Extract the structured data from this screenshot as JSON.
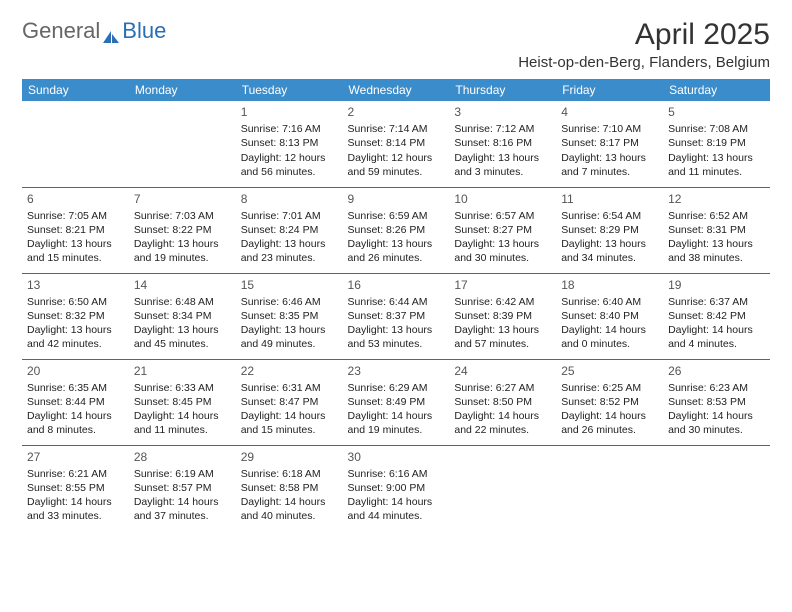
{
  "logo": {
    "text1": "General",
    "text2": "Blue"
  },
  "title": "April 2025",
  "location": "Heist-op-den-Berg, Flanders, Belgium",
  "colors": {
    "header_bg": "#3b8ccb",
    "header_text": "#ffffff",
    "border": "#2a6fb5",
    "logo_gray": "#666666",
    "logo_blue": "#2a6fb5"
  },
  "day_headers": [
    "Sunday",
    "Monday",
    "Tuesday",
    "Wednesday",
    "Thursday",
    "Friday",
    "Saturday"
  ],
  "weeks": [
    [
      null,
      null,
      {
        "n": "1",
        "sr": "7:16 AM",
        "ss": "8:13 PM",
        "dl": "12 hours and 56 minutes."
      },
      {
        "n": "2",
        "sr": "7:14 AM",
        "ss": "8:14 PM",
        "dl": "12 hours and 59 minutes."
      },
      {
        "n": "3",
        "sr": "7:12 AM",
        "ss": "8:16 PM",
        "dl": "13 hours and 3 minutes."
      },
      {
        "n": "4",
        "sr": "7:10 AM",
        "ss": "8:17 PM",
        "dl": "13 hours and 7 minutes."
      },
      {
        "n": "5",
        "sr": "7:08 AM",
        "ss": "8:19 PM",
        "dl": "13 hours and 11 minutes."
      }
    ],
    [
      {
        "n": "6",
        "sr": "7:05 AM",
        "ss": "8:21 PM",
        "dl": "13 hours and 15 minutes."
      },
      {
        "n": "7",
        "sr": "7:03 AM",
        "ss": "8:22 PM",
        "dl": "13 hours and 19 minutes."
      },
      {
        "n": "8",
        "sr": "7:01 AM",
        "ss": "8:24 PM",
        "dl": "13 hours and 23 minutes."
      },
      {
        "n": "9",
        "sr": "6:59 AM",
        "ss": "8:26 PM",
        "dl": "13 hours and 26 minutes."
      },
      {
        "n": "10",
        "sr": "6:57 AM",
        "ss": "8:27 PM",
        "dl": "13 hours and 30 minutes."
      },
      {
        "n": "11",
        "sr": "6:54 AM",
        "ss": "8:29 PM",
        "dl": "13 hours and 34 minutes."
      },
      {
        "n": "12",
        "sr": "6:52 AM",
        "ss": "8:31 PM",
        "dl": "13 hours and 38 minutes."
      }
    ],
    [
      {
        "n": "13",
        "sr": "6:50 AM",
        "ss": "8:32 PM",
        "dl": "13 hours and 42 minutes."
      },
      {
        "n": "14",
        "sr": "6:48 AM",
        "ss": "8:34 PM",
        "dl": "13 hours and 45 minutes."
      },
      {
        "n": "15",
        "sr": "6:46 AM",
        "ss": "8:35 PM",
        "dl": "13 hours and 49 minutes."
      },
      {
        "n": "16",
        "sr": "6:44 AM",
        "ss": "8:37 PM",
        "dl": "13 hours and 53 minutes."
      },
      {
        "n": "17",
        "sr": "6:42 AM",
        "ss": "8:39 PM",
        "dl": "13 hours and 57 minutes."
      },
      {
        "n": "18",
        "sr": "6:40 AM",
        "ss": "8:40 PM",
        "dl": "14 hours and 0 minutes."
      },
      {
        "n": "19",
        "sr": "6:37 AM",
        "ss": "8:42 PM",
        "dl": "14 hours and 4 minutes."
      }
    ],
    [
      {
        "n": "20",
        "sr": "6:35 AM",
        "ss": "8:44 PM",
        "dl": "14 hours and 8 minutes."
      },
      {
        "n": "21",
        "sr": "6:33 AM",
        "ss": "8:45 PM",
        "dl": "14 hours and 11 minutes."
      },
      {
        "n": "22",
        "sr": "6:31 AM",
        "ss": "8:47 PM",
        "dl": "14 hours and 15 minutes."
      },
      {
        "n": "23",
        "sr": "6:29 AM",
        "ss": "8:49 PM",
        "dl": "14 hours and 19 minutes."
      },
      {
        "n": "24",
        "sr": "6:27 AM",
        "ss": "8:50 PM",
        "dl": "14 hours and 22 minutes."
      },
      {
        "n": "25",
        "sr": "6:25 AM",
        "ss": "8:52 PM",
        "dl": "14 hours and 26 minutes."
      },
      {
        "n": "26",
        "sr": "6:23 AM",
        "ss": "8:53 PM",
        "dl": "14 hours and 30 minutes."
      }
    ],
    [
      {
        "n": "27",
        "sr": "6:21 AM",
        "ss": "8:55 PM",
        "dl": "14 hours and 33 minutes."
      },
      {
        "n": "28",
        "sr": "6:19 AM",
        "ss": "8:57 PM",
        "dl": "14 hours and 37 minutes."
      },
      {
        "n": "29",
        "sr": "6:18 AM",
        "ss": "8:58 PM",
        "dl": "14 hours and 40 minutes."
      },
      {
        "n": "30",
        "sr": "6:16 AM",
        "ss": "9:00 PM",
        "dl": "14 hours and 44 minutes."
      },
      null,
      null,
      null
    ]
  ]
}
